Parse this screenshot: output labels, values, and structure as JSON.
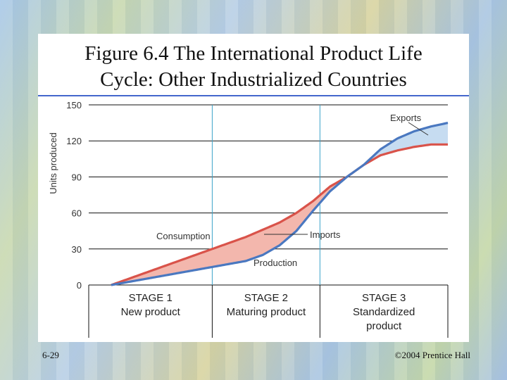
{
  "slide": {
    "title_line1": "Figure 6.4 The International Product Life",
    "title_line2": "Cycle: Other Industrialized Countries",
    "number": "6-29",
    "copyright": "©2004 Prentice Hall"
  },
  "colors": {
    "consumption": "#d9534a",
    "production": "#4a78c0",
    "imports_fill": "#f3b7ad",
    "exports_fill": "#c6dcf1",
    "stage_divider": "#3aa3c8",
    "title_rule": "#4466cc"
  },
  "chart_data": {
    "type": "line",
    "title": "Figure 6.4 The International Product Life Cycle: Other Industrialized Countries",
    "ylabel": "Units produced",
    "xlabel": "",
    "ylim": [
      0,
      150
    ],
    "xlim": [
      0,
      100
    ],
    "yticks": [
      "0",
      "30",
      "60",
      "90",
      "120",
      "150"
    ],
    "stage_boundaries": [
      30,
      62
    ],
    "stages": [
      {
        "line1": "STAGE 1",
        "line2": "New product",
        "line3": ""
      },
      {
        "line1": "STAGE 2",
        "line2": "Maturing product",
        "line3": ""
      },
      {
        "line1": "STAGE 3",
        "line2": "Standardized",
        "line3": "product"
      }
    ],
    "series": [
      {
        "name": "Consumption",
        "x": [
          0,
          10,
          20,
          30,
          40,
          50,
          55,
          60,
          65,
          70,
          75,
          80,
          85,
          90,
          95,
          100
        ],
        "values": [
          0,
          10,
          20,
          30,
          40,
          52,
          60,
          70,
          82,
          90,
          100,
          108,
          112,
          115,
          117,
          117
        ]
      },
      {
        "name": "Production",
        "x": [
          0,
          10,
          20,
          30,
          40,
          45,
          50,
          55,
          60,
          65,
          70,
          75,
          80,
          85,
          90,
          95,
          100
        ],
        "values": [
          0,
          5,
          10,
          15,
          20,
          25,
          33,
          45,
          62,
          78,
          90,
          100,
          113,
          122,
          128,
          132,
          135
        ]
      }
    ],
    "annotations": {
      "consumption": "Consumption",
      "production": "Production",
      "imports": "Imports",
      "exports": "Exports"
    }
  }
}
